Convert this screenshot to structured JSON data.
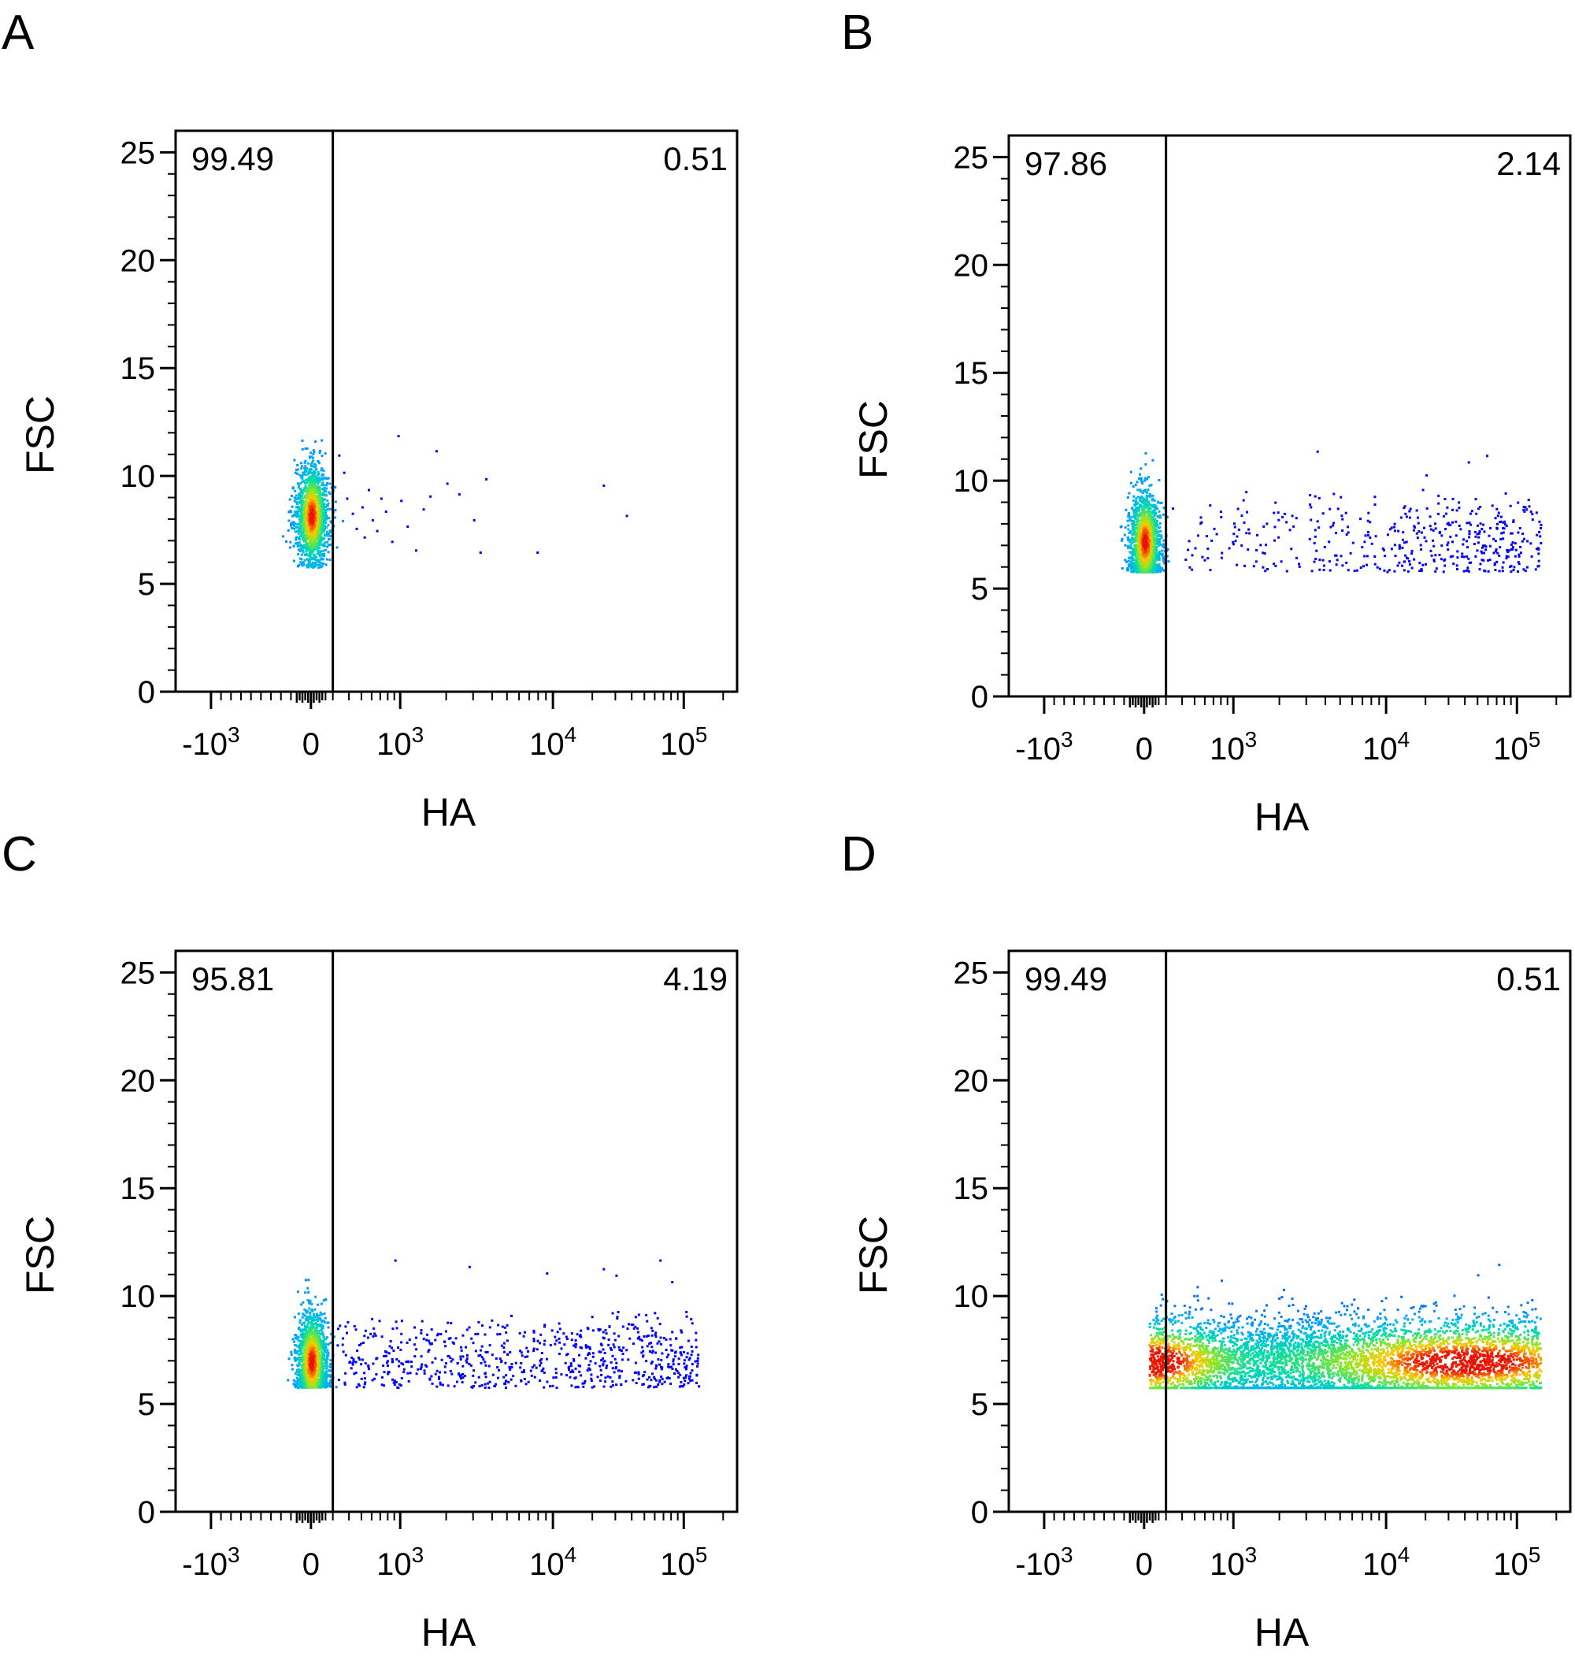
{
  "chart_data": [
    {
      "panel": "A",
      "type": "scatter",
      "xlabel": "HA",
      "ylabel": "FSC",
      "x_scale": "biexponential",
      "xticks": [
        "-10^3",
        "0",
        "10^3",
        "10^4",
        "10^5"
      ],
      "yticks": [
        "0",
        "5",
        "10",
        "15",
        "20",
        "25"
      ],
      "ylim": [
        0,
        26
      ],
      "gate_x": 300,
      "quadrant_left": "99.49",
      "quadrant_right": "0.51",
      "population": {
        "x_center": 0,
        "y_center": 8.2,
        "y_range": [
          5.8,
          11.8
        ]
      },
      "tail_points": [
        [
          330,
          11.0
        ],
        [
          360,
          10.2
        ],
        [
          380,
          9.0
        ],
        [
          420,
          8.3
        ],
        [
          450,
          7.6
        ],
        [
          500,
          8.6
        ],
        [
          520,
          7.2
        ],
        [
          560,
          9.4
        ],
        [
          600,
          8.0
        ],
        [
          650,
          7.5
        ],
        [
          700,
          9.0
        ],
        [
          760,
          8.4
        ],
        [
          850,
          7.0
        ],
        [
          950,
          11.9
        ],
        [
          1000,
          8.9
        ],
        [
          1100,
          7.7
        ],
        [
          1250,
          6.6
        ],
        [
          1400,
          8.5
        ],
        [
          1550,
          9.1
        ],
        [
          1700,
          11.2
        ],
        [
          2000,
          9.7
        ],
        [
          2400,
          9.2
        ],
        [
          3000,
          8.0
        ],
        [
          3300,
          6.5
        ],
        [
          3600,
          9.9
        ],
        [
          7800,
          6.5
        ],
        [
          24000,
          9.6
        ],
        [
          36000,
          8.2
        ]
      ]
    },
    {
      "panel": "B",
      "type": "scatter",
      "xlabel": "HA",
      "ylabel": "FSC",
      "x_scale": "biexponential",
      "xticks": [
        "-10^3",
        "0",
        "10^3",
        "10^4",
        "10^5"
      ],
      "yticks": [
        "0",
        "5",
        "10",
        "15",
        "20",
        "25"
      ],
      "ylim": [
        0,
        26
      ],
      "gate_x": 300,
      "quadrant_left": "97.86",
      "quadrant_right": "2.14",
      "population": {
        "x_center": 0,
        "y_center": 7.2,
        "y_range": [
          5.8,
          11.8
        ]
      },
      "tail": {
        "count": 460,
        "x_range": [
          320,
          150000
        ],
        "y_range": [
          5.8,
          9.8
        ]
      },
      "outliers": [
        [
          3500,
          11.4
        ],
        [
          20000,
          10.3
        ],
        [
          42000,
          10.9
        ],
        [
          58000,
          11.2
        ]
      ]
    },
    {
      "panel": "C",
      "type": "scatter",
      "xlabel": "HA",
      "ylabel": "FSC",
      "x_scale": "biexponential",
      "xticks": [
        "-10^3",
        "0",
        "10^3",
        "10^4",
        "10^5"
      ],
      "yticks": [
        "0",
        "5",
        "10",
        "15",
        "20",
        "25"
      ],
      "ylim": [
        0,
        26
      ],
      "gate_x": 300,
      "quadrant_left": "95.81",
      "quadrant_right": "4.19",
      "population": {
        "x_center": 0,
        "y_center": 7.0,
        "y_range": [
          5.8,
          12.0
        ]
      },
      "tail": {
        "count": 720,
        "x_range": [
          320,
          130000
        ],
        "y_range": [
          5.8,
          9.5
        ]
      },
      "outliers": [
        [
          900,
          11.7
        ],
        [
          2800,
          11.4
        ],
        [
          9000,
          11.1
        ],
        [
          24000,
          11.3
        ],
        [
          30000,
          11.0
        ],
        [
          65000,
          11.7
        ],
        [
          80000,
          10.7
        ]
      ]
    },
    {
      "panel": "D",
      "type": "scatter",
      "xlabel": "HA",
      "ylabel": "FSC",
      "x_scale": "biexponential",
      "xticks": [
        "-10^3",
        "0",
        "10^3",
        "10^4",
        "10^5"
      ],
      "yticks": [
        "0",
        "5",
        "10",
        "15",
        "20",
        "25"
      ],
      "ylim": [
        0,
        26
      ],
      "gate_x": 300,
      "quadrant_left": "99.49",
      "quadrant_right": "0.51",
      "population": {
        "x_range": [
          0,
          150000
        ],
        "y_range": [
          5.8,
          12.0
        ],
        "dense_left_x": 100,
        "dense_right_x": 40000,
        "y_center": 7.0
      }
    }
  ]
}
